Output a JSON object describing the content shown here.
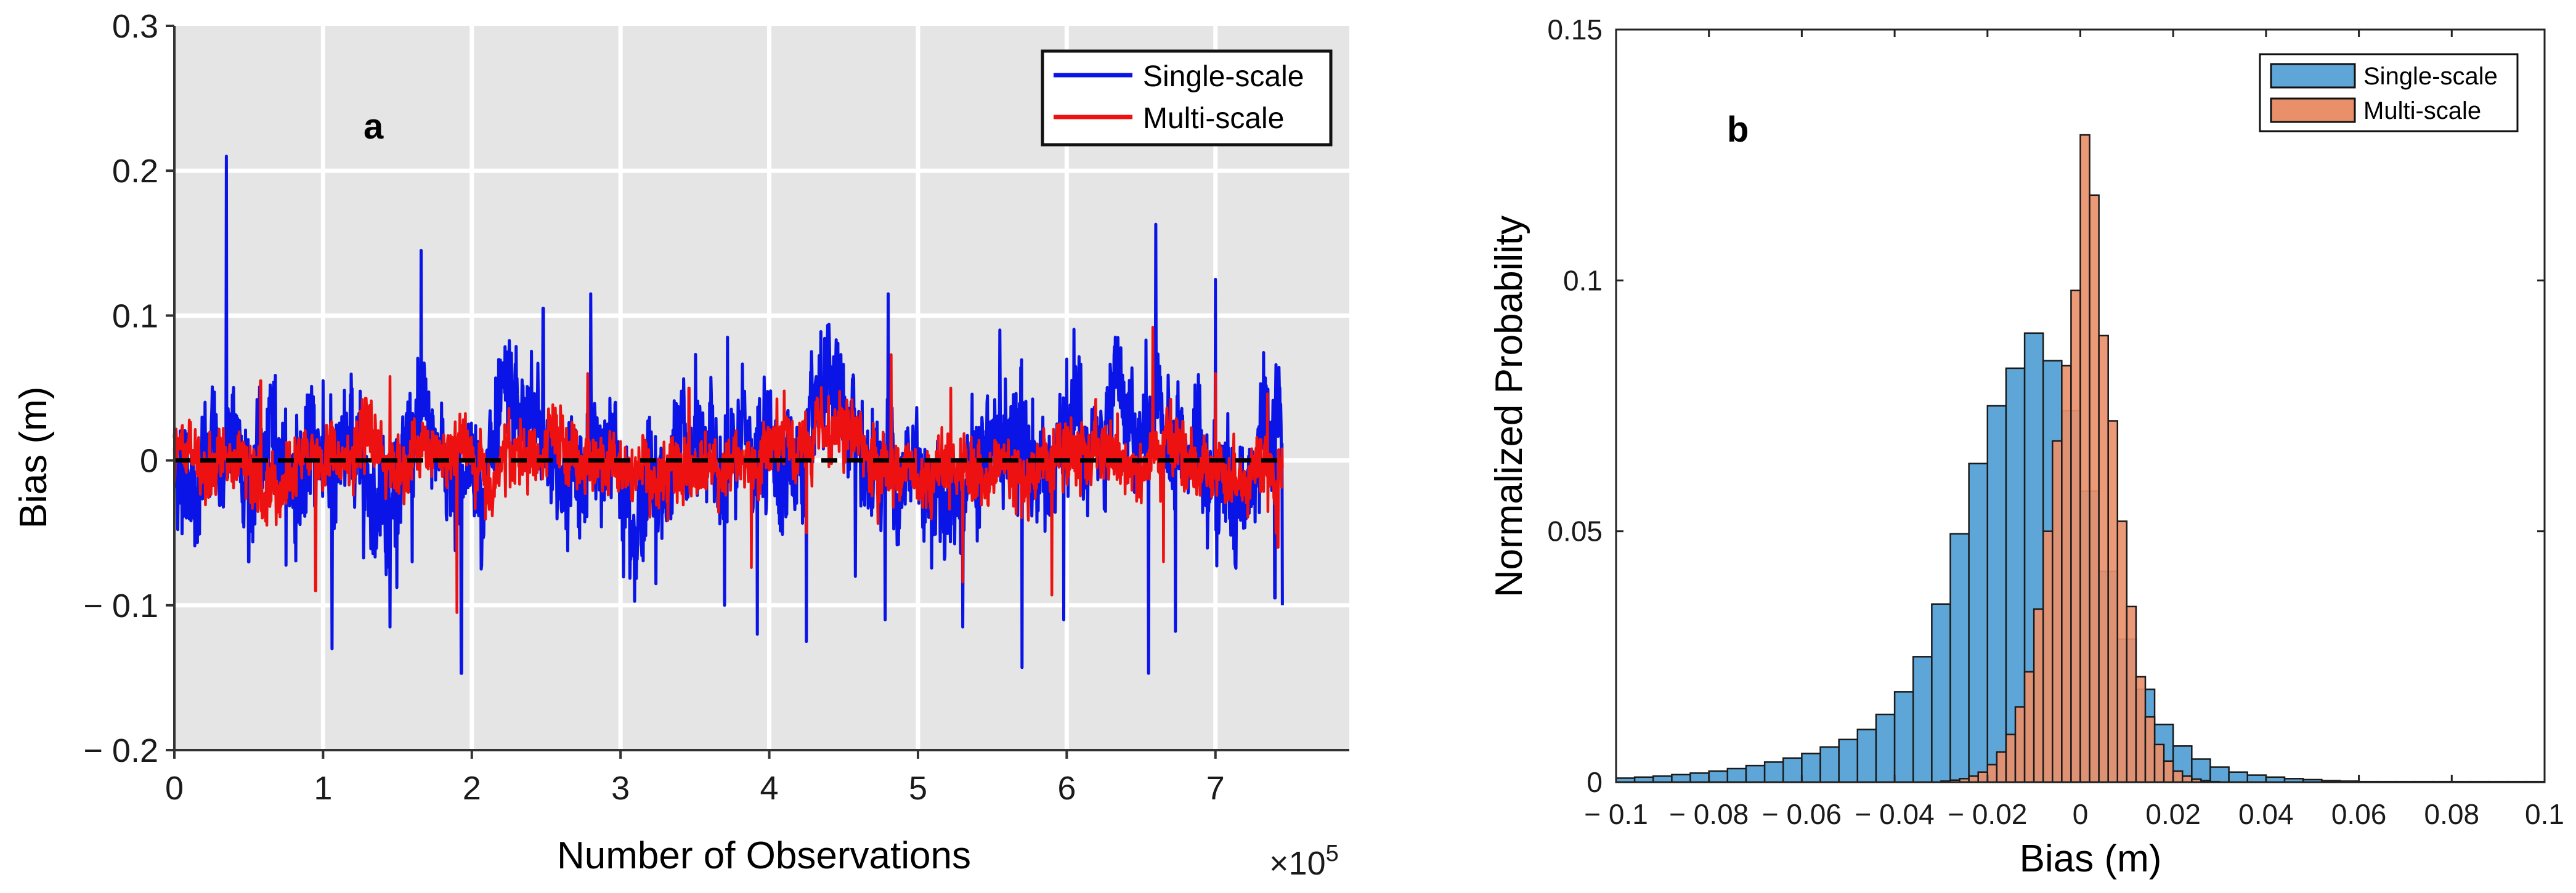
{
  "chart_data": [
    {
      "type": "line",
      "panel_label": "a",
      "xlabel": "Number of Observations",
      "ylabel": "Bias (m)",
      "x_multiplier": "×10",
      "x_multiplier_exp": "5",
      "xlim": [
        0,
        7.9
      ],
      "ylim": [
        -0.2,
        0.3
      ],
      "xticks": [
        0,
        1,
        2,
        3,
        4,
        5,
        6,
        7
      ],
      "xtick_labels": [
        "0",
        "1",
        "2",
        "3",
        "4",
        "5",
        "6",
        "7"
      ],
      "yticks": [
        -0.2,
        -0.1,
        0,
        0.1,
        0.2,
        0.3
      ],
      "ytick_labels": [
        "− 0.2",
        "− 0.1",
        "0",
        "0.1",
        "0.2",
        "0.3"
      ],
      "x_data_end": 7.45,
      "grid": true,
      "background": "#e5e5e5",
      "legend_position": "top-right",
      "reference_line": {
        "y": 0,
        "style": "dashed",
        "color": "#000000"
      },
      "series": [
        {
          "name": "Single-scale",
          "color": "#0a14e6",
          "noise_std": 0.02,
          "spikes": [
            [
              0.35,
              0.21
            ],
            [
              1.66,
              0.145
            ],
            [
              2.48,
              0.105
            ],
            [
              2.8,
              0.115
            ],
            [
              3.72,
              0.085
            ],
            [
              4.8,
              0.115
            ],
            [
              6.6,
              0.163
            ],
            [
              7.0,
              0.125
            ],
            [
              7.4,
              0.112
            ],
            [
              0.5,
              0.085
            ],
            [
              1.0,
              0.055
            ],
            [
              5.55,
              0.09
            ],
            [
              6.0,
              0.07
            ],
            [
              1.06,
              -0.13
            ],
            [
              1.45,
              -0.115
            ],
            [
              1.93,
              -0.147
            ],
            [
              3.7,
              -0.1
            ],
            [
              3.92,
              -0.12
            ],
            [
              4.25,
              -0.125
            ],
            [
              4.78,
              -0.11
            ],
            [
              5.3,
              -0.115
            ],
            [
              5.7,
              -0.143
            ],
            [
              5.98,
              -0.11
            ],
            [
              6.55,
              -0.147
            ],
            [
              6.73,
              -0.118
            ],
            [
              7.45,
              -0.1
            ],
            [
              7.4,
              -0.095
            ],
            [
              0.5,
              -0.07
            ],
            [
              1.6,
              -0.07
            ],
            [
              4.58,
              -0.08
            ]
          ]
        },
        {
          "name": "Multi-scale",
          "color": "#ee1111",
          "noise_std": 0.011,
          "spikes": [
            [
              0.58,
              0.055
            ],
            [
              1.45,
              0.058
            ],
            [
              2.78,
              0.06
            ],
            [
              3.46,
              0.05
            ],
            [
              4.1,
              0.048
            ],
            [
              4.82,
              0.073
            ],
            [
              5.22,
              0.05
            ],
            [
              6.58,
              0.092
            ],
            [
              7.0,
              0.06
            ],
            [
              7.35,
              0.046
            ],
            [
              0.95,
              -0.09
            ],
            [
              1.9,
              -0.105
            ],
            [
              3.88,
              -0.074
            ],
            [
              4.25,
              -0.05
            ],
            [
              5.3,
              -0.084
            ],
            [
              5.9,
              -0.093
            ],
            [
              6.65,
              -0.07
            ],
            [
              7.42,
              -0.06
            ]
          ]
        }
      ]
    },
    {
      "type": "histogram",
      "panel_label": "b",
      "xlabel": "Bias (m)",
      "ylabel": "Normalized Probability",
      "xlim": [
        -0.1,
        0.1
      ],
      "ylim": [
        0,
        0.15
      ],
      "xticks": [
        -0.1,
        -0.08,
        -0.06,
        -0.04,
        -0.02,
        0,
        0.02,
        0.04,
        0.06,
        0.08,
        0.1
      ],
      "xtick_labels": [
        "− 0.1",
        "− 0.08",
        "− 0.06",
        "− 0.04",
        "− 0.02",
        "0",
        "0.02",
        "0.04",
        "0.06",
        "0.08",
        "0.1"
      ],
      "yticks": [
        0,
        0.05,
        0.1,
        0.15
      ],
      "ytick_labels": [
        "0",
        "0.05",
        "0.1",
        "0.15"
      ],
      "legend_position": "top-right",
      "grid": false,
      "series": [
        {
          "name": "Single-scale",
          "color": "#5fa6d8",
          "bin_width": 0.004,
          "bin_start": -0.1,
          "values": [
            0.0008,
            0.001,
            0.0012,
            0.0015,
            0.0018,
            0.0022,
            0.0027,
            0.0033,
            0.004,
            0.0048,
            0.0057,
            0.007,
            0.0085,
            0.0105,
            0.0135,
            0.018,
            0.025,
            0.0355,
            0.0495,
            0.0635,
            0.075,
            0.0825,
            0.0895,
            0.084,
            0.074,
            0.058,
            0.042,
            0.0285,
            0.0185,
            0.0115,
            0.0072,
            0.0046,
            0.003,
            0.002,
            0.0014,
            0.001,
            0.0007,
            0.0005,
            0.0003,
            0.0002,
            0.0001,
            0.0001,
            0.0001,
            0.0001,
            0.0001,
            0.0001,
            0.0001,
            0.0001,
            0.0001,
            0.0001
          ]
        },
        {
          "name": "Multi-scale",
          "color": "#e9906a",
          "bin_width": 0.002,
          "bin_start": -0.03,
          "values": [
            0.0002,
            0.0004,
            0.0007,
            0.0012,
            0.002,
            0.0035,
            0.006,
            0.0095,
            0.015,
            0.022,
            0.0345,
            0.05,
            0.068,
            0.083,
            0.098,
            0.129,
            0.117,
            0.089,
            0.072,
            0.052,
            0.035,
            0.021,
            0.013,
            0.0075,
            0.0042,
            0.0022,
            0.0012,
            0.0006,
            0.0003,
            0.0001
          ]
        }
      ]
    }
  ]
}
